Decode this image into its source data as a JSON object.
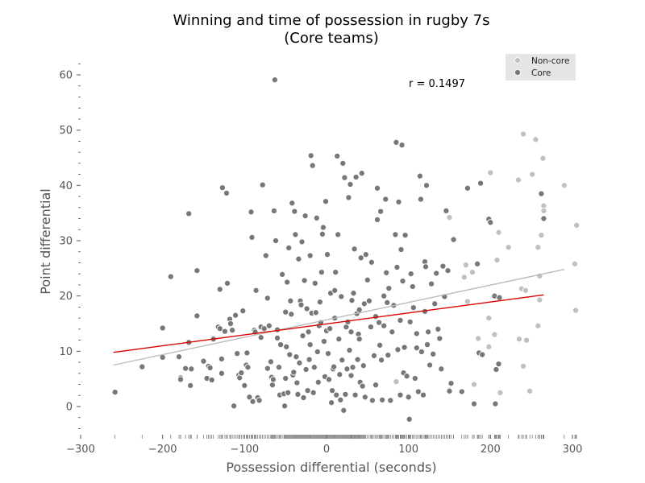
{
  "chart_data": {
    "type": "scatter",
    "title_line1": "Winning and time of possession in rugby 7s",
    "title_line2": "(Core teams)",
    "xlabel": "Possession differential (seconds)",
    "ylabel": "Point differential",
    "xlim": [
      -300,
      310
    ],
    "ylim": [
      -5,
      62
    ],
    "xticks": [
      -300,
      -200,
      -100,
      0,
      100,
      200,
      300
    ],
    "yticks": [
      0,
      10,
      20,
      30,
      40,
      50,
      60
    ],
    "grid": false,
    "legend_position": "top-right",
    "annotation": "r = 0.1497",
    "colors": {
      "core": "#777777",
      "noncore": "#c0c0c0",
      "core_line": "#dd0000",
      "noncore_line": "#bbbbbb",
      "legend_bg": "#e5e5e5"
    },
    "series": [
      {
        "name": "Non-core",
        "color": "#c0c0c0",
        "points": [
          [
            150,
            34.2
          ],
          [
            155,
            30.4
          ],
          [
            170,
            25.6
          ],
          [
            168,
            23.4
          ],
          [
            178,
            24.3
          ],
          [
            172,
            19.0
          ],
          [
            185,
            12.3
          ],
          [
            198,
            16.0
          ],
          [
            200,
            42.3
          ],
          [
            198,
            10.8
          ],
          [
            205,
            13.0
          ],
          [
            208,
            26.5
          ],
          [
            210,
            31.5
          ],
          [
            210,
            7.8
          ],
          [
            212,
            2.5
          ],
          [
            222,
            28.8
          ],
          [
            234,
            41.0
          ],
          [
            235,
            12.2
          ],
          [
            238,
            21.3
          ],
          [
            240,
            49.3
          ],
          [
            240,
            7.3
          ],
          [
            243,
            21.0
          ],
          [
            244,
            12.0
          ],
          [
            248,
            2.8
          ],
          [
            251,
            42.0
          ],
          [
            255,
            48.3
          ],
          [
            258,
            14.6
          ],
          [
            258,
            28.8
          ],
          [
            260,
            19.3
          ],
          [
            260,
            23.6
          ],
          [
            262,
            31.0
          ],
          [
            264,
            44.9
          ],
          [
            265,
            36.3
          ],
          [
            265,
            35.4
          ],
          [
            290,
            40.0
          ],
          [
            303,
            25.8
          ],
          [
            304,
            17.4
          ],
          [
            305,
            32.8
          ],
          [
            180,
            4.0
          ],
          [
            85,
            4.5
          ],
          [
            150,
            3.0
          ]
        ]
      },
      {
        "name": "Core",
        "color": "#777777",
        "points": [
          [
            -258,
            2.6
          ],
          [
            -225,
            7.2
          ],
          [
            -200,
            14.2
          ],
          [
            -200,
            8.9
          ],
          [
            -190,
            23.5
          ],
          [
            -180,
            9.0
          ],
          [
            -178,
            5.2
          ],
          [
            -178,
            4.9
          ],
          [
            -172,
            6.9
          ],
          [
            -168,
            34.9
          ],
          [
            -168,
            11.6
          ],
          [
            -166,
            3.8
          ],
          [
            -165,
            6.8
          ],
          [
            -158,
            24.6
          ],
          [
            -158,
            16.4
          ],
          [
            -150,
            8.2
          ],
          [
            -146,
            5.1
          ],
          [
            -144,
            7.3
          ],
          [
            -142,
            7.0
          ],
          [
            -140,
            4.8
          ],
          [
            -138,
            12.2
          ],
          [
            -132,
            14.4
          ],
          [
            -130,
            21.2
          ],
          [
            -130,
            14.1
          ],
          [
            -128,
            8.6
          ],
          [
            -128,
            6.0
          ],
          [
            -127,
            39.6
          ],
          [
            -124,
            13.6
          ],
          [
            -122,
            38.6
          ],
          [
            -121,
            22.3
          ],
          [
            -118,
            15.8
          ],
          [
            -117,
            15.0
          ],
          [
            -115,
            13.8
          ],
          [
            -113,
            0.1
          ],
          [
            -111,
            16.5
          ],
          [
            -109,
            9.6
          ],
          [
            -107,
            5.7
          ],
          [
            -106,
            5.2
          ],
          [
            -104,
            6.1
          ],
          [
            -102,
            17.3
          ],
          [
            -100,
            3.8
          ],
          [
            -98,
            7.5
          ],
          [
            -97,
            9.7
          ],
          [
            -96,
            7.1
          ],
          [
            -94,
            1.7
          ],
          [
            -92,
            35.2
          ],
          [
            -91,
            30.6
          ],
          [
            -90,
            0.9
          ],
          [
            -88,
            13.8
          ],
          [
            -87,
            13.5
          ],
          [
            -86,
            21.0
          ],
          [
            -84,
            1.6
          ],
          [
            -82,
            1.1
          ],
          [
            -80,
            14.4
          ],
          [
            -78,
            40.1
          ],
          [
            -76,
            14.1
          ],
          [
            -74,
            27.3
          ],
          [
            -72,
            19.6
          ],
          [
            -72,
            6.9
          ],
          [
            -70,
            14.6
          ],
          [
            -68,
            8.1
          ],
          [
            -67,
            5.3
          ],
          [
            -66,
            3.9
          ],
          [
            -65,
            4.9
          ],
          [
            -64,
            35.4
          ],
          [
            -63,
            59.1
          ],
          [
            -62,
            30.0
          ],
          [
            -60,
            12.4
          ],
          [
            -58,
            7.1
          ],
          [
            -57,
            2.1
          ],
          [
            -56,
            11.2
          ],
          [
            -54,
            23.9
          ],
          [
            -52,
            2.3
          ],
          [
            -51,
            0.1
          ],
          [
            -50,
            5.1
          ],
          [
            -49,
            10.8
          ],
          [
            -48,
            22.5
          ],
          [
            -47,
            2.5
          ],
          [
            -46,
            28.7
          ],
          [
            -45,
            9.4
          ],
          [
            -44,
            19.1
          ],
          [
            -43,
            16.7
          ],
          [
            -42,
            36.8
          ],
          [
            -41,
            5.7
          ],
          [
            -40,
            6.2
          ],
          [
            -39,
            35.3
          ],
          [
            -38,
            31.1
          ],
          [
            -37,
            9.0
          ],
          [
            -36,
            4.3
          ],
          [
            -35,
            2.2
          ],
          [
            -34,
            26.7
          ],
          [
            -33,
            7.9
          ],
          [
            -32,
            19.1
          ],
          [
            -31,
            18.4
          ],
          [
            -30,
            29.8
          ],
          [
            -29,
            12.8
          ],
          [
            -28,
            1.6
          ],
          [
            -27,
            22.8
          ],
          [
            -26,
            34.5
          ],
          [
            -25,
            6.7
          ],
          [
            -24,
            17.7
          ],
          [
            -23,
            2.9
          ],
          [
            -22,
            13.5
          ],
          [
            -21,
            8.5
          ],
          [
            -20,
            27.3
          ],
          [
            -19,
            45.4
          ],
          [
            -18,
            16.9
          ],
          [
            -17,
            43.6
          ],
          [
            -16,
            2.5
          ],
          [
            -15,
            7.1
          ],
          [
            -14,
            22.3
          ],
          [
            -13,
            17.0
          ],
          [
            -12,
            34.1
          ],
          [
            -11,
            9.9
          ],
          [
            -10,
            4.4
          ],
          [
            -9,
            14.6
          ],
          [
            -8,
            18.9
          ],
          [
            -7,
            15.2
          ],
          [
            -6,
            24.3
          ],
          [
            -5,
            31.2
          ],
          [
            -4,
            32.4
          ],
          [
            -3,
            11.8
          ],
          [
            -2,
            5.4
          ],
          [
            -1,
            37.1
          ],
          [
            0,
            13.7
          ],
          [
            1,
            27.5
          ],
          [
            2,
            9.6
          ],
          [
            3,
            4.9
          ],
          [
            4,
            14.1
          ],
          [
            5,
            20.5
          ],
          [
            6,
            0.7
          ],
          [
            7,
            2.9
          ],
          [
            8,
            6.8
          ],
          [
            9,
            7.2
          ],
          [
            10,
            16.0
          ],
          [
            11,
            24.3
          ],
          [
            12,
            2.1
          ],
          [
            13,
            45.3
          ],
          [
            14,
            31.1
          ],
          [
            15,
            12.2
          ],
          [
            16,
            5.8
          ],
          [
            17,
            1.2
          ],
          [
            18,
            19.9
          ],
          [
            19,
            8.4
          ],
          [
            20,
            44.0
          ],
          [
            21,
            -0.7
          ],
          [
            22,
            41.4
          ],
          [
            23,
            2.2
          ],
          [
            24,
            14.4
          ],
          [
            25,
            6.8
          ],
          [
            26,
            15.3
          ],
          [
            27,
            37.8
          ],
          [
            28,
            10.2
          ],
          [
            29,
            40.2
          ],
          [
            30,
            5.6
          ],
          [
            31,
            19.2
          ],
          [
            32,
            7.1
          ],
          [
            33,
            20.5
          ],
          [
            34,
            28.5
          ],
          [
            35,
            2.1
          ],
          [
            36,
            41.5
          ],
          [
            37,
            16.8
          ],
          [
            38,
            8.5
          ],
          [
            39,
            13.1
          ],
          [
            40,
            12.2
          ],
          [
            41,
            4.4
          ],
          [
            42,
            26.9
          ],
          [
            43,
            42.2
          ],
          [
            44,
            3.7
          ],
          [
            45,
            7.4
          ],
          [
            46,
            18.6
          ],
          [
            47,
            1.7
          ],
          [
            48,
            27.5
          ],
          [
            50,
            22.9
          ],
          [
            52,
            19.1
          ],
          [
            54,
            14.4
          ],
          [
            55,
            26.1
          ],
          [
            56,
            1.1
          ],
          [
            58,
            9.2
          ],
          [
            60,
            3.9
          ],
          [
            62,
            33.8
          ],
          [
            62,
            39.5
          ],
          [
            64,
            15.2
          ],
          [
            65,
            11.1
          ],
          [
            66,
            35.3
          ],
          [
            67,
            8.4
          ],
          [
            68,
            1.2
          ],
          [
            70,
            14.6
          ],
          [
            72,
            37.5
          ],
          [
            73,
            24.2
          ],
          [
            74,
            18.8
          ],
          [
            75,
            9.3
          ],
          [
            76,
            21.4
          ],
          [
            78,
            1.1
          ],
          [
            80,
            13.5
          ],
          [
            82,
            18.3
          ],
          [
            84,
            31.1
          ],
          [
            85,
            47.8
          ],
          [
            86,
            25.2
          ],
          [
            87,
            10.3
          ],
          [
            88,
            37.0
          ],
          [
            90,
            2.1
          ],
          [
            91,
            28.4
          ],
          [
            92,
            47.3
          ],
          [
            93,
            22.7
          ],
          [
            94,
            6.1
          ],
          [
            95,
            10.7
          ],
          [
            96,
            31.0
          ],
          [
            98,
            5.5
          ],
          [
            100,
            1.7
          ],
          [
            101,
            -2.3
          ],
          [
            102,
            15.3
          ],
          [
            103,
            24.0
          ],
          [
            105,
            21.7
          ],
          [
            106,
            17.9
          ],
          [
            108,
            5.1
          ],
          [
            110,
            10.6
          ],
          [
            112,
            2.7
          ],
          [
            114,
            41.7
          ],
          [
            115,
            37.5
          ],
          [
            116,
            9.9
          ],
          [
            118,
            2.1
          ],
          [
            120,
            26.2
          ],
          [
            121,
            25.3
          ],
          [
            122,
            40.0
          ],
          [
            123,
            11.2
          ],
          [
            124,
            13.5
          ],
          [
            126,
            7.5
          ],
          [
            128,
            22.2
          ],
          [
            130,
            9.5
          ],
          [
            132,
            18.6
          ],
          [
            134,
            24.1
          ],
          [
            136,
            14.0
          ],
          [
            138,
            12.3
          ],
          [
            140,
            6.8
          ],
          [
            142,
            25.4
          ],
          [
            144,
            19.9
          ],
          [
            146,
            35.4
          ],
          [
            148,
            24.6
          ],
          [
            150,
            2.8
          ],
          [
            152,
            4.2
          ],
          [
            155,
            30.2
          ],
          [
            165,
            2.7
          ],
          [
            172,
            39.5
          ],
          [
            180,
            0.5
          ],
          [
            184,
            25.8
          ],
          [
            186,
            9.7
          ],
          [
            188,
            40.4
          ],
          [
            190,
            9.4
          ],
          [
            198,
            33.9
          ],
          [
            200,
            33.3
          ],
          [
            205,
            20.0
          ],
          [
            206,
            0.5
          ],
          [
            207,
            6.7
          ],
          [
            210,
            7.7
          ],
          [
            211,
            19.7
          ],
          [
            262,
            38.5
          ],
          [
            265,
            34.0
          ],
          [
            -60,
            13.9
          ],
          [
            -80,
            12.5
          ],
          [
            -20,
            11.2
          ],
          [
            30,
            13.5
          ],
          [
            60,
            16.3
          ],
          [
            90,
            15.6
          ],
          [
            110,
            13.2
          ],
          [
            -50,
            17.1
          ],
          [
            10,
            21.0
          ],
          [
            40,
            17.5
          ],
          [
            70,
            20.0
          ],
          [
            120,
            17.2
          ]
        ]
      }
    ],
    "fit_lines": [
      {
        "name": "Non-core",
        "color": "#bbbbbb",
        "x": [
          -260,
          290
        ],
        "y": [
          7.5,
          24.8
        ]
      },
      {
        "name": "Core",
        "color": "#dd0000",
        "x": [
          -260,
          265
        ],
        "y": [
          9.8,
          20.2
        ]
      }
    ]
  }
}
